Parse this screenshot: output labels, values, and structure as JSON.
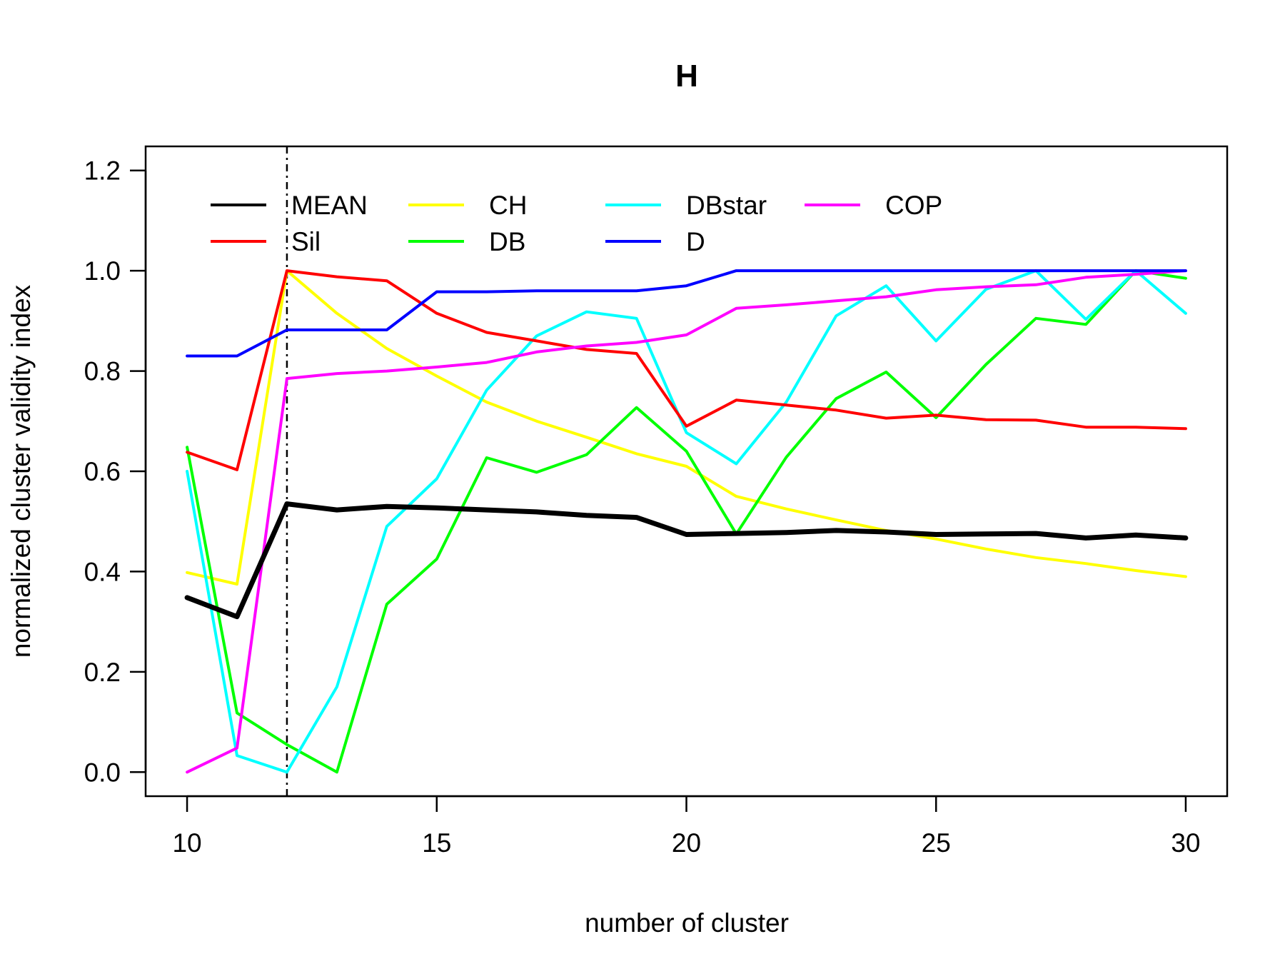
{
  "chart_data": {
    "type": "line",
    "title": "H",
    "xlabel": "number of cluster",
    "ylabel": "normalized cluster validity index",
    "xlim": [
      9.17,
      30.83
    ],
    "ylim": [
      -0.048,
      1.248
    ],
    "xticks": [
      10,
      15,
      20,
      25,
      30
    ],
    "yticks": [
      "0.0",
      "0.2",
      "0.4",
      "0.6",
      "0.8",
      "1.0",
      "1.2"
    ],
    "x": [
      10,
      11,
      12,
      13,
      14,
      15,
      16,
      17,
      18,
      19,
      20,
      21,
      22,
      23,
      24,
      25,
      26,
      27,
      28,
      29,
      30
    ],
    "vline": {
      "x": 12,
      "style": "dashed"
    },
    "legend_position": "top",
    "series": [
      {
        "name": "MEAN",
        "color": "#000000",
        "width": "thick",
        "values": [
          0.348,
          0.31,
          0.535,
          0.523,
          0.53,
          0.527,
          0.523,
          0.519,
          0.512,
          0.508,
          0.474,
          0.476,
          0.478,
          0.482,
          0.479,
          0.474,
          0.475,
          0.476,
          0.467,
          0.473,
          0.467
        ]
      },
      {
        "name": "Sil",
        "color": "#ff0000",
        "width": "normal",
        "values": [
          0.638,
          0.603,
          1.0,
          0.988,
          0.98,
          0.915,
          0.877,
          0.86,
          0.843,
          0.835,
          0.69,
          0.742,
          0.732,
          0.722,
          0.706,
          0.712,
          0.703,
          0.702,
          0.688,
          0.688,
          0.685
        ]
      },
      {
        "name": "CH",
        "color": "#ffff00",
        "width": "normal",
        "values": [
          0.398,
          0.375,
          1.0,
          0.915,
          0.845,
          0.79,
          0.738,
          0.7,
          0.668,
          0.635,
          0.61,
          0.55,
          0.525,
          0.503,
          0.482,
          0.465,
          0.445,
          0.428,
          0.416,
          0.402,
          0.39
        ]
      },
      {
        "name": "DB",
        "color": "#00ff00",
        "width": "normal",
        "values": [
          0.648,
          0.118,
          0.055,
          0.0,
          0.335,
          0.425,
          0.627,
          0.598,
          0.633,
          0.727,
          0.64,
          0.475,
          0.628,
          0.745,
          0.798,
          0.707,
          0.813,
          0.905,
          0.893,
          1.0,
          0.985
        ]
      },
      {
        "name": "DBstar",
        "color": "#00ffff",
        "width": "normal",
        "values": [
          0.6,
          0.033,
          0.0,
          0.17,
          0.49,
          0.585,
          0.762,
          0.87,
          0.918,
          0.905,
          0.677,
          0.615,
          0.738,
          0.91,
          0.97,
          0.86,
          0.963,
          1.0,
          0.903,
          1.0,
          0.915
        ]
      },
      {
        "name": "D",
        "color": "#0000ff",
        "width": "normal",
        "values": [
          0.83,
          0.83,
          0.882,
          0.882,
          0.882,
          0.958,
          0.958,
          0.96,
          0.96,
          0.96,
          0.97,
          1.0,
          1.0,
          1.0,
          1.0,
          1.0,
          1.0,
          1.0,
          1.0,
          1.0,
          1.0
        ]
      },
      {
        "name": "COP",
        "color": "#ff00ff",
        "width": "normal",
        "values": [
          0.0,
          0.048,
          0.785,
          0.795,
          0.8,
          0.808,
          0.817,
          0.838,
          0.85,
          0.857,
          0.872,
          0.925,
          0.932,
          0.94,
          0.948,
          0.962,
          0.968,
          0.972,
          0.987,
          0.993,
          1.0
        ]
      }
    ]
  }
}
